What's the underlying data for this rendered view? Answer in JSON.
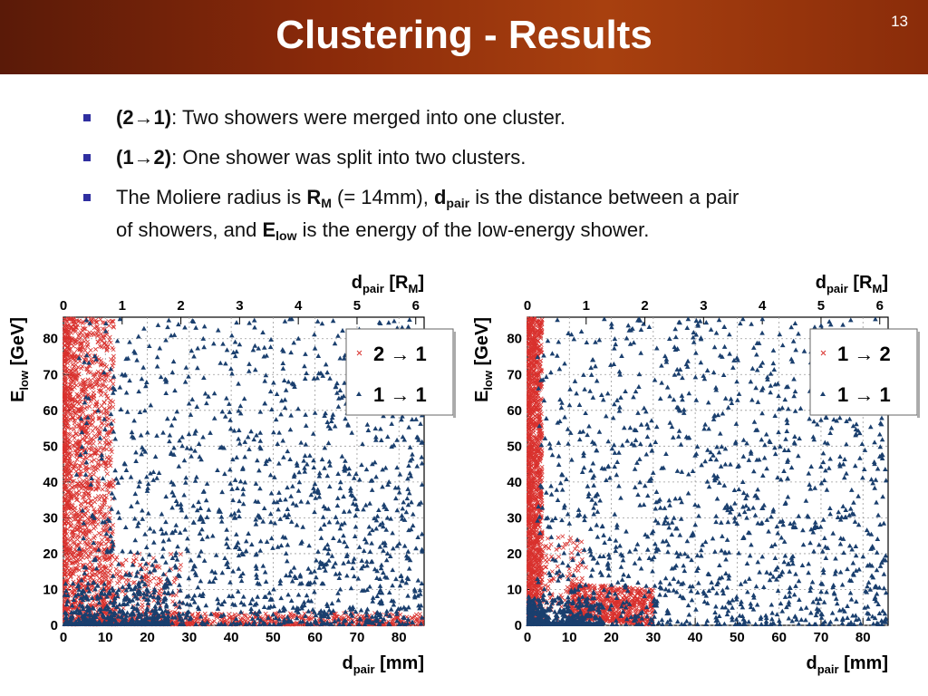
{
  "slide": {
    "title": "Clustering - Results",
    "number": "13"
  },
  "bullets": [
    {
      "bold": "(2→1)",
      "text": ": Two showers were merged into one cluster."
    },
    {
      "bold": "(1→2)",
      "text": ": One shower was split into two clusters."
    },
    {
      "pre": "The Moliere radius is ",
      "rm": "R",
      "rm_sub": "M",
      "mid1": " (= 14mm), ",
      "d": "d",
      "d_sub": "pair",
      "mid2": " is the distance between a pair",
      "line2a": "of showers, and ",
      "e": "E",
      "e_sub": "low",
      "line2b": " is the energy of the low-energy shower."
    }
  ],
  "colors": {
    "red_marker": "#d9322e",
    "blue_marker": "#1a3f6e",
    "bullet": "#2f2fa0"
  },
  "chart_data": [
    {
      "type": "scatter",
      "xlabel": "d",
      "xlabel_sub": "pair",
      "xlabel_unit": " [mm]",
      "top_axis_label": "d",
      "top_axis_sub": "pair",
      "top_axis_unit": " [R",
      "top_axis_unit_sub": "M",
      "top_axis_close": "]",
      "ylabel": "E",
      "ylabel_sub": "low",
      "ylabel_unit": " [GeV]",
      "xlim": [
        0,
        86
      ],
      "ylim": [
        0,
        86
      ],
      "xticks": [
        "0",
        "10",
        "20",
        "30",
        "40",
        "50",
        "60",
        "70",
        "80"
      ],
      "yticks": [
        "0",
        "10",
        "20",
        "30",
        "40",
        "50",
        "60",
        "70",
        "80"
      ],
      "top_ticks": [
        "0",
        "1",
        "2",
        "3",
        "4",
        "5",
        "6"
      ],
      "grid": true,
      "legend_position": "top-right",
      "series": [
        {
          "name": "2 → 1",
          "marker": "x",
          "color": "#d9322e",
          "note": "dense band at d_pair < 12 mm for all E_low and along E_low < 3 GeV for all d_pair"
        },
        {
          "name": "1 → 1",
          "marker": "triangle",
          "color": "#1a3f6e",
          "note": "spread across full range, denser at low E_low"
        }
      ]
    },
    {
      "type": "scatter",
      "xlabel": "d",
      "xlabel_sub": "pair",
      "xlabel_unit": " [mm]",
      "top_axis_label": "d",
      "top_axis_sub": "pair",
      "top_axis_unit": " [R",
      "top_axis_unit_sub": "M",
      "top_axis_close": "]",
      "ylabel": "E",
      "ylabel_sub": "low",
      "ylabel_unit": " [GeV]",
      "xlim": [
        0,
        86
      ],
      "ylim": [
        0,
        86
      ],
      "xticks": [
        "0",
        "10",
        "20",
        "30",
        "40",
        "50",
        "60",
        "70",
        "80"
      ],
      "yticks": [
        "0",
        "10",
        "20",
        "30",
        "40",
        "50",
        "60",
        "70",
        "80"
      ],
      "top_ticks": [
        "0",
        "1",
        "2",
        "3",
        "4",
        "5",
        "6"
      ],
      "grid": true,
      "legend_position": "top-right",
      "series": [
        {
          "name": "1 → 2",
          "marker": "x",
          "color": "#d9322e",
          "note": "narrow band at d_pair < 4 mm and a blob near d_pair 15-30 mm, E_low < 12 GeV"
        },
        {
          "name": "1 → 1",
          "marker": "triangle",
          "color": "#1a3f6e",
          "note": "spread across full range, dense near origin"
        }
      ]
    }
  ]
}
